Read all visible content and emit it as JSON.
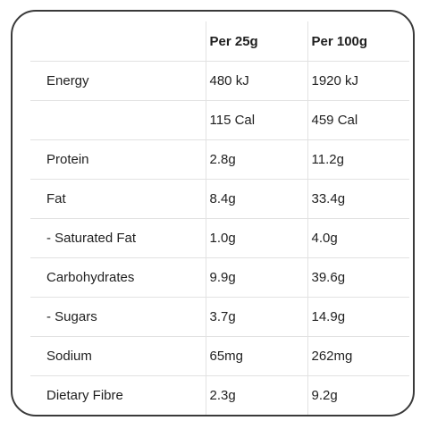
{
  "table": {
    "headers": [
      "",
      "Per 25g",
      "Per 100g"
    ],
    "rows": [
      [
        "Energy",
        "480 kJ",
        "1920 kJ"
      ],
      [
        "",
        "115 Cal",
        "459 Cal"
      ],
      [
        "Protein",
        "2.8g",
        "11.2g"
      ],
      [
        "Fat",
        "8.4g",
        "33.4g"
      ],
      [
        "- Saturated Fat",
        "1.0g",
        "4.0g"
      ],
      [
        "Carbohydrates",
        "9.9g",
        "39.6g"
      ],
      [
        "- Sugars",
        "3.7g",
        "14.9g"
      ],
      [
        "Sodium",
        "65mg",
        "262mg"
      ],
      [
        "Dietary Fibre",
        "2.3g",
        "9.2g"
      ]
    ]
  },
  "colors": {
    "border": "#3a3a3a",
    "gridline": "#e2e2e2",
    "text": "#1f1f1f",
    "background": "#ffffff"
  }
}
